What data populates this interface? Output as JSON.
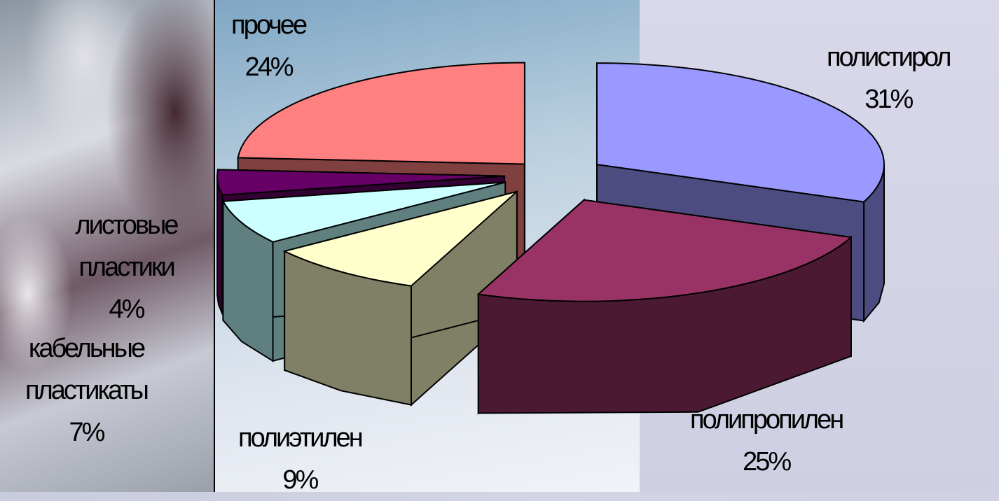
{
  "chart_data": {
    "type": "pie",
    "variant": "3d-exploded",
    "categories": [
      "полистирол",
      "полипропилен",
      "полиэтилен",
      "кабельные пластикаты",
      "листовые пластики",
      "прочее"
    ],
    "values": [
      31,
      25,
      9,
      7,
      4,
      24
    ],
    "value_labels": [
      "31%",
      "25%",
      "9%",
      "7%",
      "4%",
      "24%"
    ],
    "colors": {
      "top": [
        "#9999ff",
        "#993366",
        "#ffffcc",
        "#ccffff",
        "#660066",
        "#ff8080"
      ],
      "side": [
        "#4c4c80",
        "#4c1933",
        "#808066",
        "#608080",
        "#330033",
        "#804040"
      ]
    },
    "legend": "none"
  }
}
